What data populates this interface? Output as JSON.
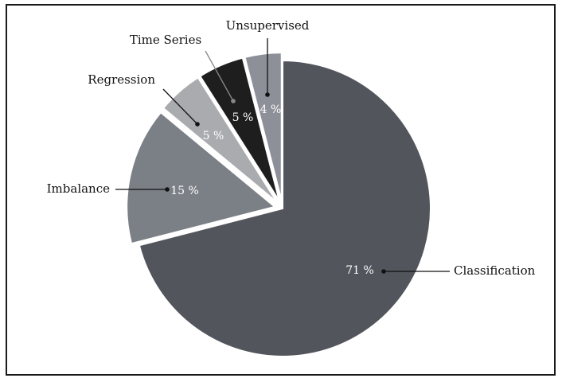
{
  "chart_data": {
    "type": "pie",
    "title": "",
    "slices": [
      {
        "label": "Classification",
        "value": 71,
        "value_label": "71 %",
        "color": "#52565c",
        "exploded": false
      },
      {
        "label": "Imbalance",
        "value": 15,
        "value_label": "15 %",
        "color": "#7b7f86",
        "exploded": true
      },
      {
        "label": "Regression",
        "value": 5,
        "value_label": "5 %",
        "color": "#a9abae",
        "exploded": true
      },
      {
        "label": "Time Series",
        "value": 5,
        "value_label": "5 %",
        "color": "#1e1e1e",
        "exploded": true
      },
      {
        "label": "Unsupervised",
        "value": 4,
        "value_label": "4 %",
        "color": "#8d9099",
        "exploded": true
      }
    ]
  }
}
